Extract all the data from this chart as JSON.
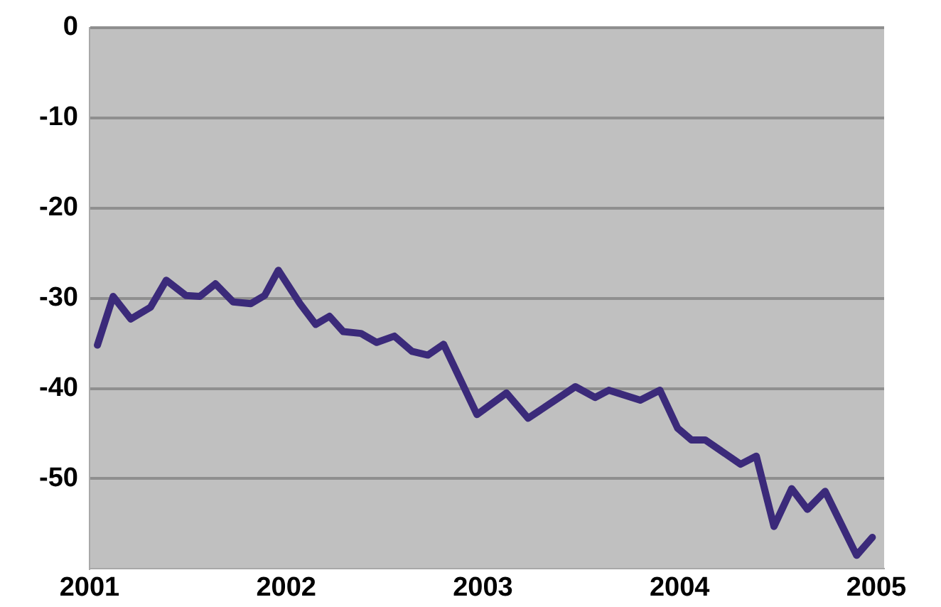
{
  "chart_data": {
    "type": "line",
    "x": [
      2001.04,
      2001.12,
      2001.21,
      2001.31,
      2001.39,
      2001.49,
      2001.56,
      2001.64,
      2001.73,
      2001.82,
      2001.89,
      2001.96,
      2002.07,
      2002.15,
      2002.22,
      2002.29,
      2002.38,
      2002.46,
      2002.55,
      2002.64,
      2002.72,
      2002.8,
      2002.97,
      2003.12,
      2003.23,
      2003.47,
      2003.57,
      2003.64,
      2003.8,
      2003.9,
      2003.99,
      2004.06,
      2004.13,
      2004.31,
      2004.39,
      2004.48,
      2004.57,
      2004.65,
      2004.74,
      2004.9,
      2004.98
    ],
    "series": [
      {
        "color": "#3b2a7a",
        "values": [
          -35.2,
          -29.8,
          -32.3,
          -31,
          -28,
          -29.7,
          -29.8,
          -28.4,
          -30.4,
          -30.6,
          -29.7,
          -26.9,
          -30.6,
          -32.9,
          -32,
          -33.7,
          -33.9,
          -34.9,
          -34.2,
          -35.9,
          -36.3,
          -35.1,
          -42.9,
          -40.5,
          -43.3,
          -39.8,
          -41,
          -40.2,
          -41.3,
          -40.2,
          -44.4,
          -45.7,
          -45.7,
          -48.4,
          -47.5,
          -55.3,
          -51.1,
          -53.4,
          -51.4,
          -58.5,
          -56.5
        ]
      }
    ],
    "xlim": [
      2001,
      2005.04
    ],
    "xticks": [
      2001,
      2002,
      2003,
      2004,
      2005
    ],
    "ylim": [
      -60,
      0
    ],
    "yticks": [
      0,
      -10,
      -20,
      -30,
      -40,
      -50
    ],
    "grid": "y",
    "legend": false,
    "marker": "none",
    "line_style": "solid"
  }
}
